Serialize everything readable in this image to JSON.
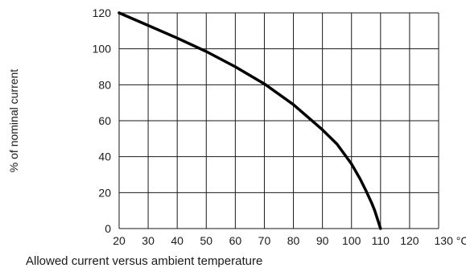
{
  "chart_data": {
    "type": "line",
    "title": "",
    "caption": "Allowed current versus ambient temperature",
    "ylabel": "% of nominal current",
    "xlabel": "",
    "x_unit": "°C",
    "xlim": [
      20,
      130
    ],
    "ylim": [
      0,
      120
    ],
    "x_ticks": [
      20,
      30,
      40,
      50,
      60,
      70,
      80,
      90,
      100,
      110,
      120,
      130
    ],
    "y_ticks": [
      0,
      20,
      40,
      60,
      80,
      100,
      120
    ],
    "grid": true,
    "series": [
      {
        "x": [
          20,
          30,
          40,
          50,
          60,
          70,
          80,
          90,
          95,
          100,
          103,
          105,
          107,
          108,
          109,
          110
        ],
        "y": [
          120,
          113,
          106,
          98.5,
          90,
          80.5,
          69,
          55,
          47,
          36,
          27.5,
          21,
          14,
          10,
          5,
          0
        ]
      }
    ],
    "colors": {
      "line": "#000000",
      "grid": "#1a1a1a"
    }
  }
}
